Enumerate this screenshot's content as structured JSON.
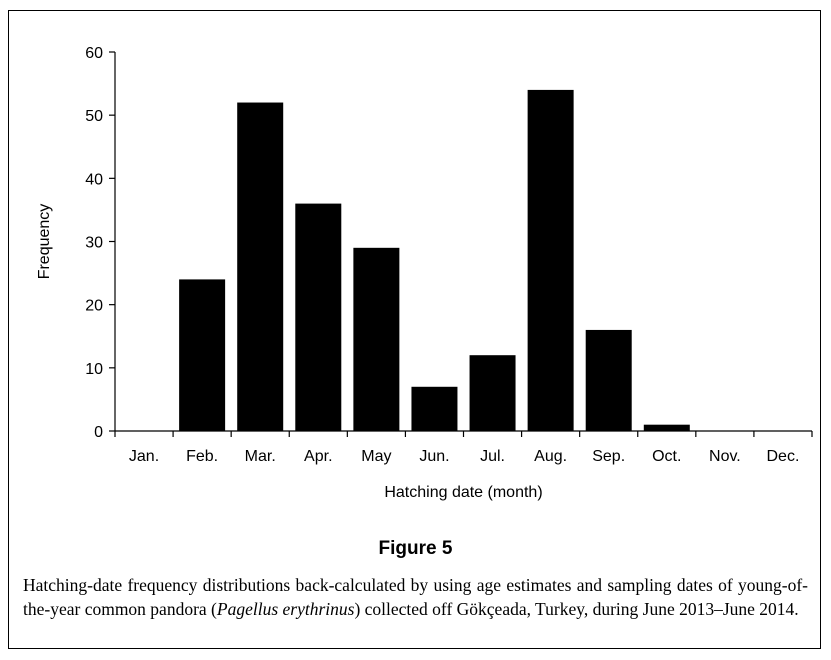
{
  "chart_data": {
    "type": "bar",
    "title": "",
    "xlabel": "Hatching date (month)",
    "ylabel": "Frequency",
    "ylim": [
      0,
      60
    ],
    "yticks": [
      0,
      10,
      20,
      30,
      40,
      50,
      60
    ],
    "categories": [
      "Jan.",
      "Feb.",
      "Mar.",
      "Apr.",
      "May",
      "Jun.",
      "Jul.",
      "Aug.",
      "Sep.",
      "Oct.",
      "Nov.",
      "Dec."
    ],
    "values": [
      0,
      24,
      52,
      36,
      29,
      7,
      12,
      54,
      16,
      1,
      0,
      0
    ],
    "bar_color": "#000000",
    "grid": false,
    "legend": "none"
  },
  "figure": {
    "label": "Figure 5",
    "caption_part1": "Hatching-date frequency distributions back-calculated by using age estimates and sampling dates of young-of-the-year common pandora (",
    "caption_species": "Pagellus erythrinus",
    "caption_part2": ") collected off Gökçeada, Turkey, during June 2013–June 2014."
  }
}
